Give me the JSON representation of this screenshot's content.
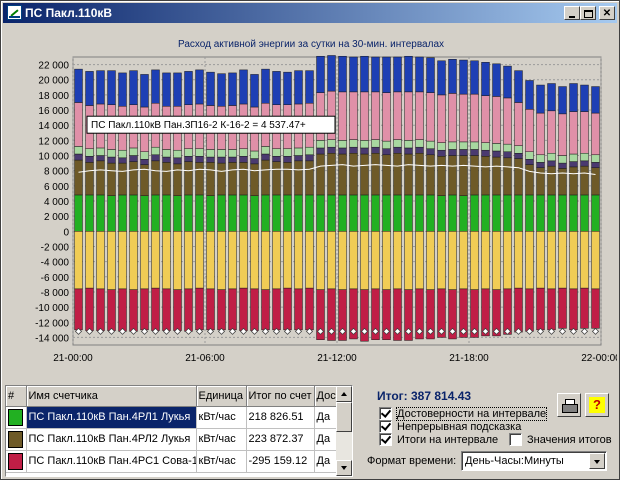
{
  "window": {
    "title": "ПС Пакл.110кВ"
  },
  "chart_data": {
    "type": "bar",
    "title": "Расход активной энергии за сутки на 30-мин. интервалах",
    "x_ticks": [
      "21-00:00",
      "21-06:00",
      "21-12:00",
      "21-18:00",
      "22-00:00"
    ],
    "y_ticks": [
      "22 000",
      "20 000",
      "18 000",
      "16 000",
      "14 000",
      "12 000",
      "10 000",
      "8 000",
      "6 000",
      "4 000",
      "2 000",
      "0",
      "-2 000",
      "-4 000",
      "-6 000",
      "-8 000",
      "-10 000",
      "-12 000",
      "-14 000"
    ],
    "ylim": [
      -15000,
      23000
    ],
    "grid": true,
    "interval_count": 48,
    "legend": "none",
    "tooltip": "ПС Пакл.110кВ Пан.3П16-2 К-16-2 = 4 537.47+",
    "positive_series": [
      {
        "color": "#22b022",
        "values": [
          4800,
          4800,
          4800,
          4700,
          4800,
          4800,
          4700,
          4800,
          4800,
          4700,
          4800,
          4800,
          4700,
          4800,
          4800,
          4800,
          4700,
          4800,
          4800,
          4800,
          4800,
          4800,
          4800,
          4800,
          4800,
          4800,
          4800,
          4800,
          4800,
          4800,
          4800,
          4800,
          4800,
          4700,
          4800,
          4700,
          4800,
          4800,
          4800,
          4800,
          4800,
          4800,
          4800,
          4800,
          4800,
          4800,
          4800,
          4800
        ]
      },
      {
        "color": "#6e5a28",
        "values": [
          4600,
          4300,
          4500,
          4300,
          4200,
          4400,
          4100,
          4500,
          4300,
          4200,
          4400,
          4300,
          4400,
          4200,
          4300,
          4300,
          4200,
          4600,
          4400,
          4300,
          4500,
          4500,
          5400,
          5500,
          5400,
          5500,
          5400,
          5500,
          5300,
          5500,
          5400,
          5500,
          5300,
          5200,
          5200,
          5300,
          5200,
          5100,
          5000,
          4900,
          4800,
          4000,
          3600,
          3800,
          3500,
          3700,
          3800,
          3600
        ]
      },
      {
        "color": "#4a3a70",
        "values": [
          800,
          800,
          700,
          800,
          700,
          800,
          700,
          800,
          700,
          800,
          700,
          800,
          700,
          800,
          700,
          800,
          700,
          800,
          700,
          800,
          700,
          800,
          800,
          800,
          800,
          800,
          800,
          800,
          800,
          800,
          800,
          800,
          800,
          800,
          800,
          800,
          800,
          800,
          800,
          800,
          700,
          700,
          700,
          700,
          700,
          700,
          700,
          700
        ]
      },
      {
        "color": "#a8d8a0",
        "values": [
          1000,
          1000,
          1000,
          1000,
          1000,
          1000,
          1000,
          1000,
          1000,
          1000,
          1000,
          1000,
          1000,
          1000,
          1000,
          1000,
          1000,
          1000,
          1000,
          1000,
          1000,
          1000,
          1000,
          1000,
          1000,
          1000,
          1000,
          1000,
          1000,
          1000,
          1000,
          1000,
          1000,
          1000,
          1000,
          1000,
          1000,
          1000,
          1000,
          1000,
          1000,
          1000,
          1000,
          1000,
          1000,
          1000,
          1000,
          1000
        ]
      },
      {
        "color": "#e090a8",
        "values": [
          5800,
          5700,
          5800,
          5900,
          5800,
          5700,
          5900,
          5800,
          5700,
          5800,
          5800,
          5900,
          5800,
          5700,
          5800,
          5900,
          5800,
          5700,
          5800,
          5800,
          5800,
          5800,
          6300,
          6400,
          6400,
          6300,
          6400,
          6300,
          6400,
          6300,
          6400,
          6300,
          6400,
          6300,
          6400,
          6300,
          6300,
          6200,
          6200,
          6100,
          5700,
          5600,
          5500,
          5600,
          5500,
          5600,
          5500,
          5500
        ]
      },
      {
        "color": "#1e3fb4",
        "values": [
          4400,
          4500,
          4400,
          4500,
          4400,
          4500,
          4300,
          4400,
          4400,
          4400,
          4400,
          4500,
          4400,
          4300,
          4300,
          4500,
          4300,
          4500,
          4400,
          4300,
          4400,
          4300,
          4800,
          4700,
          4700,
          4600,
          4700,
          4600,
          4700,
          4600,
          4700,
          4600,
          4600,
          4500,
          4500,
          4500,
          4400,
          4400,
          4300,
          4200,
          4200,
          3800,
          3700,
          3600,
          3600,
          3700,
          3500,
          3500
        ]
      }
    ],
    "negative_series": [
      {
        "color": "#f0cc55",
        "values": [
          -7600,
          -7500,
          -7600,
          -7700,
          -7600,
          -7700,
          -7600,
          -7500,
          -7600,
          -7700,
          -7600,
          -7500,
          -7600,
          -7700,
          -7600,
          -7500,
          -7600,
          -7700,
          -7600,
          -7500,
          -7600,
          -7500,
          -7700,
          -7600,
          -7700,
          -7600,
          -7700,
          -7600,
          -7700,
          -7600,
          -7700,
          -7600,
          -7700,
          -7600,
          -7700,
          -7600,
          -7700,
          -7600,
          -7700,
          -7600,
          -7500,
          -7600,
          -7500,
          -7600,
          -7500,
          -7600,
          -7500,
          -7600
        ]
      },
      {
        "color": "#c01e46",
        "values": [
          -5400,
          -5600,
          -5500,
          -5400,
          -5600,
          -5500,
          -5400,
          -5600,
          -5500,
          -5400,
          -5600,
          -5500,
          -5400,
          -5300,
          -5400,
          -5600,
          -5500,
          -5300,
          -5400,
          -5500,
          -5400,
          -5500,
          -6600,
          -6800,
          -6700,
          -6600,
          -6800,
          -6700,
          -6600,
          -6800,
          -6700,
          -6600,
          -6500,
          -6400,
          -6500,
          -6400,
          -6300,
          -6200,
          -6100,
          -6000,
          -5800,
          -5600,
          -5500,
          -5400,
          -5300,
          -5400,
          -5300,
          -5200
        ]
      }
    ],
    "line_series": {
      "color": "#ffffff",
      "values": [
        7800,
        8000,
        8100,
        8000,
        7900,
        8100,
        8200,
        8000,
        7900,
        8100,
        8000,
        8200,
        8100,
        7900,
        8100,
        8200,
        8000,
        8100,
        8200,
        8200,
        8100,
        8200,
        8600,
        8700,
        8800,
        8600,
        8700,
        8800,
        8700,
        8600,
        8800,
        8700,
        8600,
        8700,
        8600,
        8700,
        8600,
        8500,
        8600,
        8500,
        8400,
        7900,
        7700,
        7600,
        7700,
        7600,
        7700,
        7500
      ]
    },
    "marker_y": -13200
  },
  "table": {
    "headers": [
      "#",
      "Имя счетчика",
      "Единица",
      "Итог по счет",
      "Дост"
    ],
    "rows": [
      {
        "color": "#22b022",
        "name": "ПС Пакл.110кВ Пан.4РЛ1 Лукья",
        "unit": "кВт/час",
        "total": "218 826.51",
        "valid": "Да"
      },
      {
        "color": "#6e5a28",
        "name": "ПС Пакл.110кВ Пан.4РЛ2 Лукья",
        "unit": "кВт/час",
        "total": "223 872.37",
        "valid": "Да"
      },
      {
        "color": "#c01e46",
        "name": "ПС Пакл.110кВ Пан.4РС1 Сова-1",
        "unit": "кВт/час",
        "total": "-295 159.12",
        "valid": "Да"
      }
    ]
  },
  "summary": {
    "total_label": "Итог: 387 814.43"
  },
  "options": {
    "reliability": {
      "label": "Достоверности на интервале",
      "checked": true
    },
    "continuous_hint": {
      "label": "Непрерывная подсказка",
      "checked": true
    },
    "interval_totals": {
      "label": "Итоги на интервале",
      "checked": true
    },
    "total_values": {
      "label": "Значения итогов",
      "checked": false
    }
  },
  "time_format": {
    "label": "Формат времени:",
    "value": "День-Часы:Минуты"
  },
  "icons": [
    "app-icon",
    "printer-icon",
    "help-icon",
    "minimize-icon",
    "maximize-icon",
    "close-icon"
  ]
}
